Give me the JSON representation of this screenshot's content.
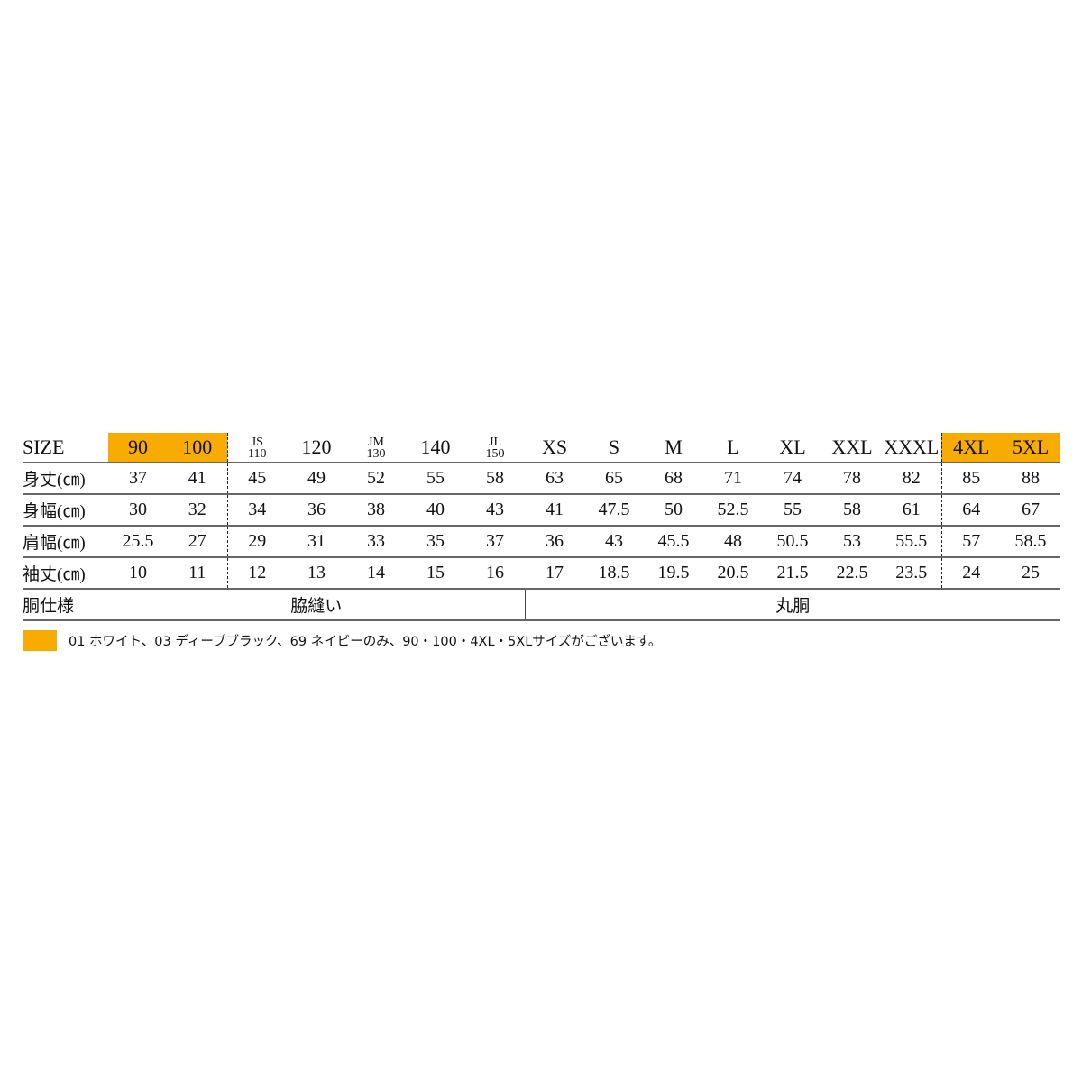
{
  "table": {
    "size_label": "SIZE",
    "sizes": [
      {
        "label": "90",
        "highlight": true
      },
      {
        "label": "100",
        "highlight": true
      },
      {
        "top": "JS",
        "bottom": "110"
      },
      {
        "label": "120"
      },
      {
        "top": "JM",
        "bottom": "130"
      },
      {
        "label": "140"
      },
      {
        "top": "JL",
        "bottom": "150"
      },
      {
        "label": "XS"
      },
      {
        "label": "S"
      },
      {
        "label": "M"
      },
      {
        "label": "L"
      },
      {
        "label": "XL"
      },
      {
        "label": "XXL"
      },
      {
        "label": "XXXL"
      },
      {
        "label": "4XL",
        "highlight": true
      },
      {
        "label": "5XL",
        "highlight": true
      }
    ],
    "rows": [
      {
        "label": "身丈(㎝)",
        "values": [
          "37",
          "41",
          "45",
          "49",
          "52",
          "55",
          "58",
          "63",
          "65",
          "68",
          "71",
          "74",
          "78",
          "82",
          "85",
          "88"
        ]
      },
      {
        "label": "身幅(㎝)",
        "values": [
          "30",
          "32",
          "34",
          "36",
          "38",
          "40",
          "43",
          "41",
          "47.5",
          "50",
          "52.5",
          "55",
          "58",
          "61",
          "64",
          "67"
        ]
      },
      {
        "label": "肩幅(㎝)",
        "values": [
          "25.5",
          "27",
          "29",
          "31",
          "33",
          "35",
          "37",
          "36",
          "43",
          "45.5",
          "48",
          "50.5",
          "53",
          "55.5",
          "57",
          "58.5"
        ]
      },
      {
        "label": "袖丈(㎝)",
        "values": [
          "10",
          "11",
          "12",
          "13",
          "14",
          "15",
          "16",
          "17",
          "18.5",
          "19.5",
          "20.5",
          "21.5",
          "22.5",
          "23.5",
          "24",
          "25"
        ]
      }
    ],
    "body_spec": {
      "label": "胴仕様",
      "side_seam": "脇縫い",
      "tubular": "丸胴"
    }
  },
  "note": {
    "swatch_color": "#f8ab00",
    "text": "01 ホワイト、03 ディープブラック、69 ネイビーのみ、90・100・4XL・5XLサイズがございます。"
  }
}
